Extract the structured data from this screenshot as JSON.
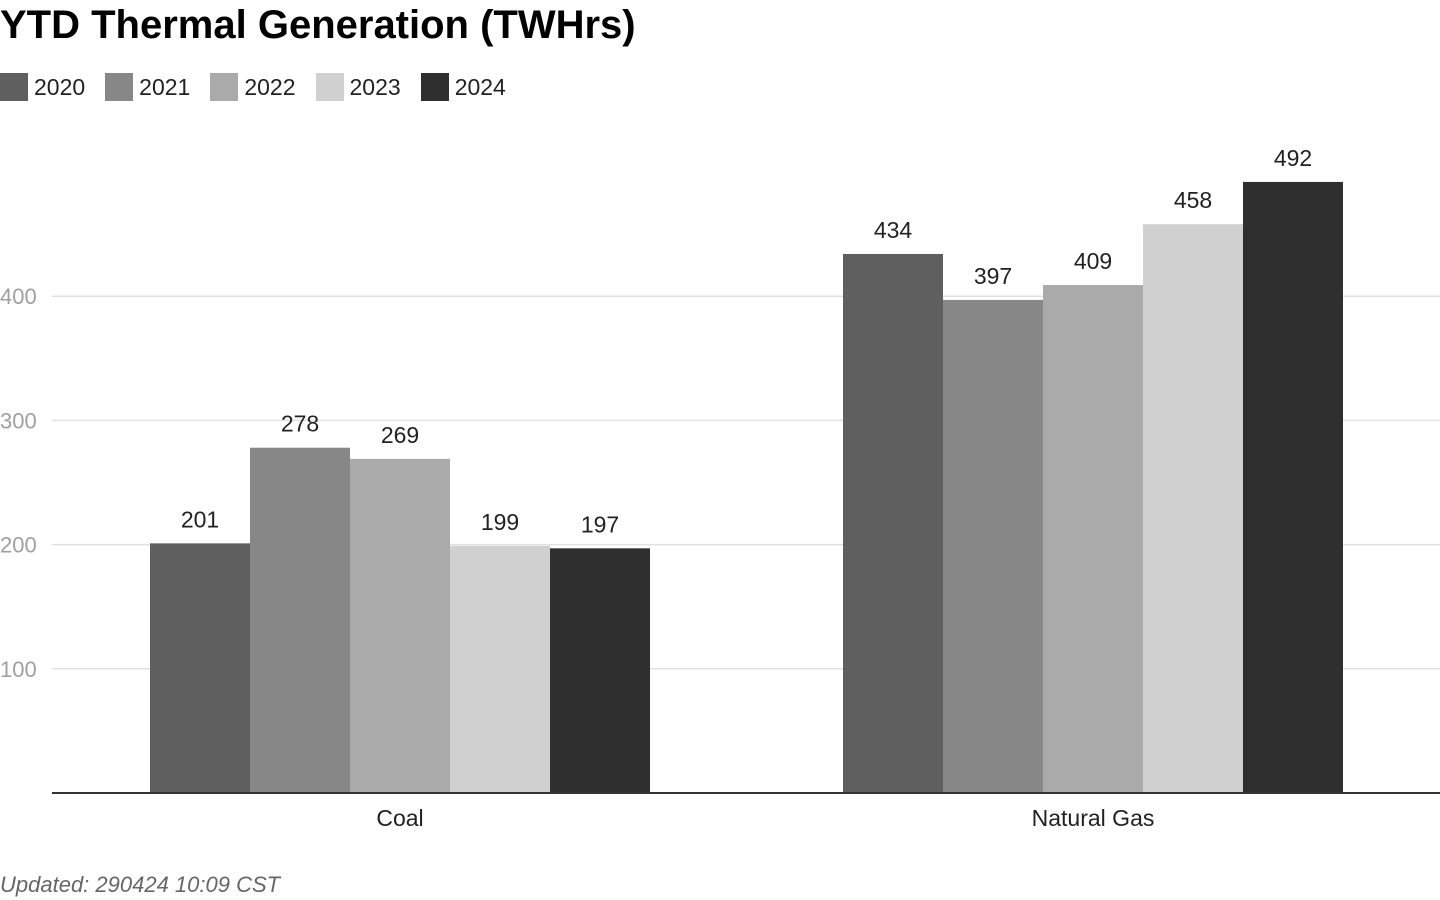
{
  "chart_data": {
    "type": "bar",
    "title": "YTD Thermal Generation (TWHrs)",
    "categories": [
      "Coal",
      "Natural Gas"
    ],
    "series": [
      {
        "name": "2020",
        "color": "#5f5f5f",
        "values": [
          201,
          434
        ]
      },
      {
        "name": "2021",
        "color": "#878787",
        "values": [
          278,
          397
        ]
      },
      {
        "name": "2022",
        "color": "#aaaaaa",
        "values": [
          269,
          409
        ]
      },
      {
        "name": "2023",
        "color": "#d0d0d0",
        "values": [
          199,
          458
        ]
      },
      {
        "name": "2024",
        "color": "#2f2f2f",
        "values": [
          197,
          492
        ]
      }
    ],
    "y_ticks": [
      100,
      200,
      300,
      400
    ],
    "ylim": [
      0,
      500
    ],
    "grid": true,
    "legend_position": "top-left",
    "xlabel": "",
    "ylabel": ""
  },
  "footer": {
    "updated": "Updated: 290424 10:09 CST"
  }
}
